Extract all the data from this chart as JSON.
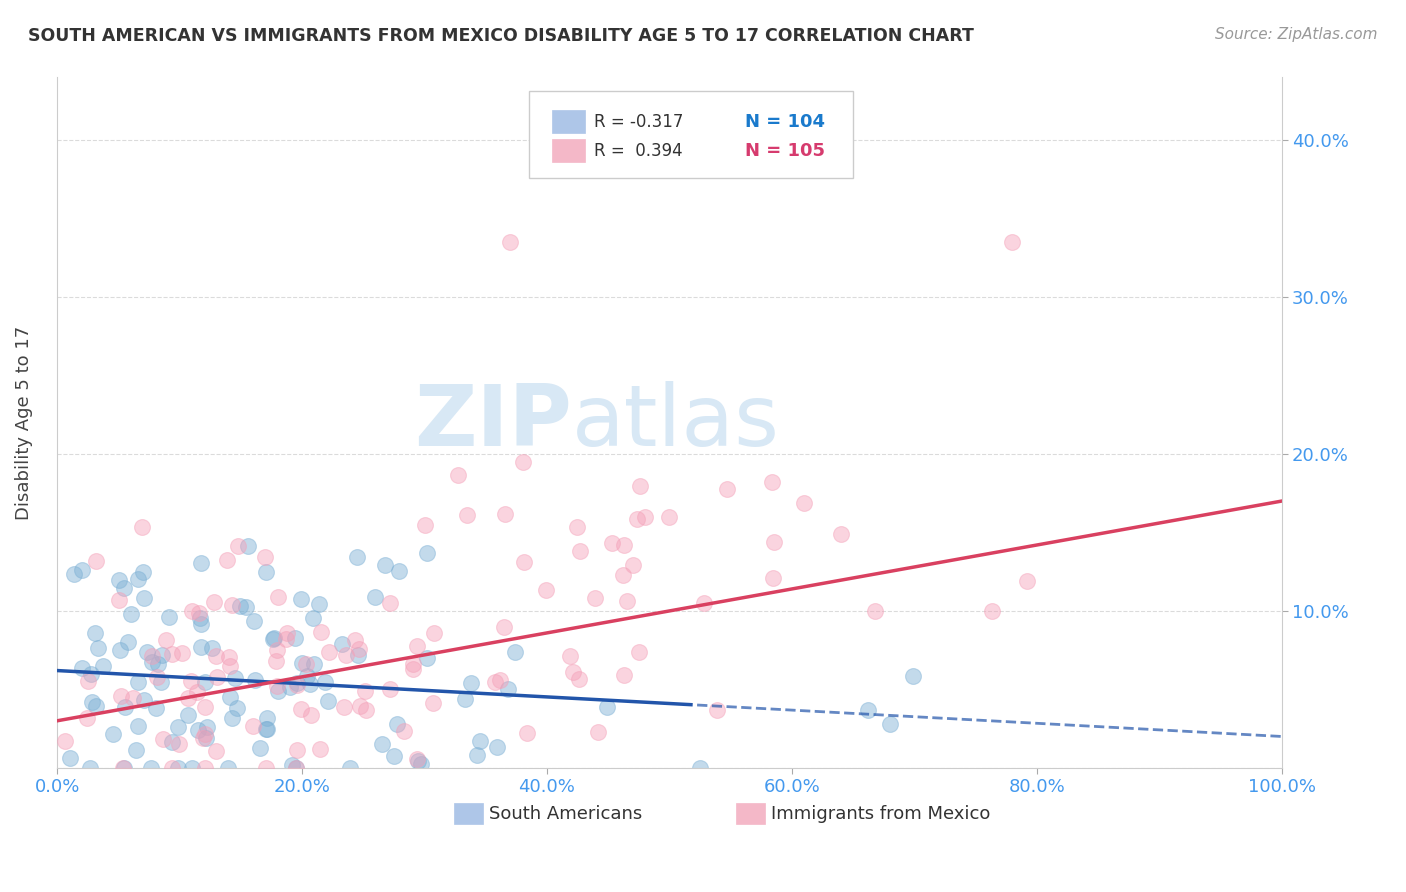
{
  "title": "SOUTH AMERICAN VS IMMIGRANTS FROM MEXICO DISABILITY AGE 5 TO 17 CORRELATION CHART",
  "source": "Source: ZipAtlas.com",
  "ylabel": "Disability Age 5 to 17",
  "xlabel_ticks": [
    "0.0%",
    "20.0%",
    "40.0%",
    "60.0%",
    "80.0%",
    "100.0%"
  ],
  "ylabel_ticks_right": [
    "40.0%",
    "30.0%",
    "20.0%",
    "10.0%"
  ],
  "xlim": [
    0.0,
    1.0
  ],
  "ylim": [
    0.0,
    0.44
  ],
  "blue_intercept": 0.062,
  "blue_slope": -0.042,
  "pink_intercept": 0.03,
  "pink_slope": 0.14,
  "blue_color": "#7bafd4",
  "pink_color": "#f4a0b8",
  "blue_line_color": "#2255aa",
  "pink_line_color": "#d94060",
  "watermark_zip": "ZIP",
  "watermark_atlas": "atlas",
  "watermark_color": "#d8e8f5",
  "background_color": "#ffffff",
  "grid_color": "#cccccc",
  "tick_color": "#4499ee",
  "title_color": "#333333",
  "legend_blue_patch": "#aec6e8",
  "legend_pink_patch": "#f4b8c8",
  "legend_r_color": "#333333",
  "legend_n_blue_color": "#1a7acc",
  "legend_n_pink_color": "#d63b6e",
  "seed": 42,
  "blue_N": 104,
  "pink_N": 105
}
